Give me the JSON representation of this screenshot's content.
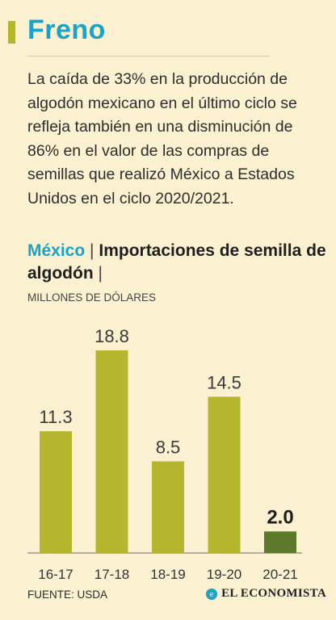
{
  "header": {
    "title": "Freno",
    "description": "La caída de 33% en la producción de algodón mexicano en el último ciclo se refleja también en una disminución de 86% en el valor de las compras de semillas que realizó México a Estados Unidos en el ciclo 2020/2021."
  },
  "chart_title": {
    "country": "México",
    "sep1": "|",
    "main": "Importaciones de semilla de algodón",
    "sep2": "|"
  },
  "footer": {
    "source": "FUENTE: USDA",
    "logo_mark": "e",
    "logo_text": "EL ECONOMISTA"
  },
  "colors": {
    "bar": "#b6b52e",
    "bar_highlight": "#5d7a2c",
    "title": "#1aa3c6"
  },
  "chart_data": {
    "type": "bar",
    "categories": [
      "16-17",
      "17-18",
      "18-19",
      "19-20",
      "20-21"
    ],
    "values": [
      11.3,
      18.8,
      8.5,
      14.5,
      2.0
    ],
    "value_labels": [
      "11.3",
      "18.8",
      "8.5",
      "14.5",
      "2.0"
    ],
    "highlight_index": 4,
    "ylabel": "MILLONES DE DÓLARES",
    "ylim": [
      0,
      18.8
    ],
    "grid": false
  }
}
